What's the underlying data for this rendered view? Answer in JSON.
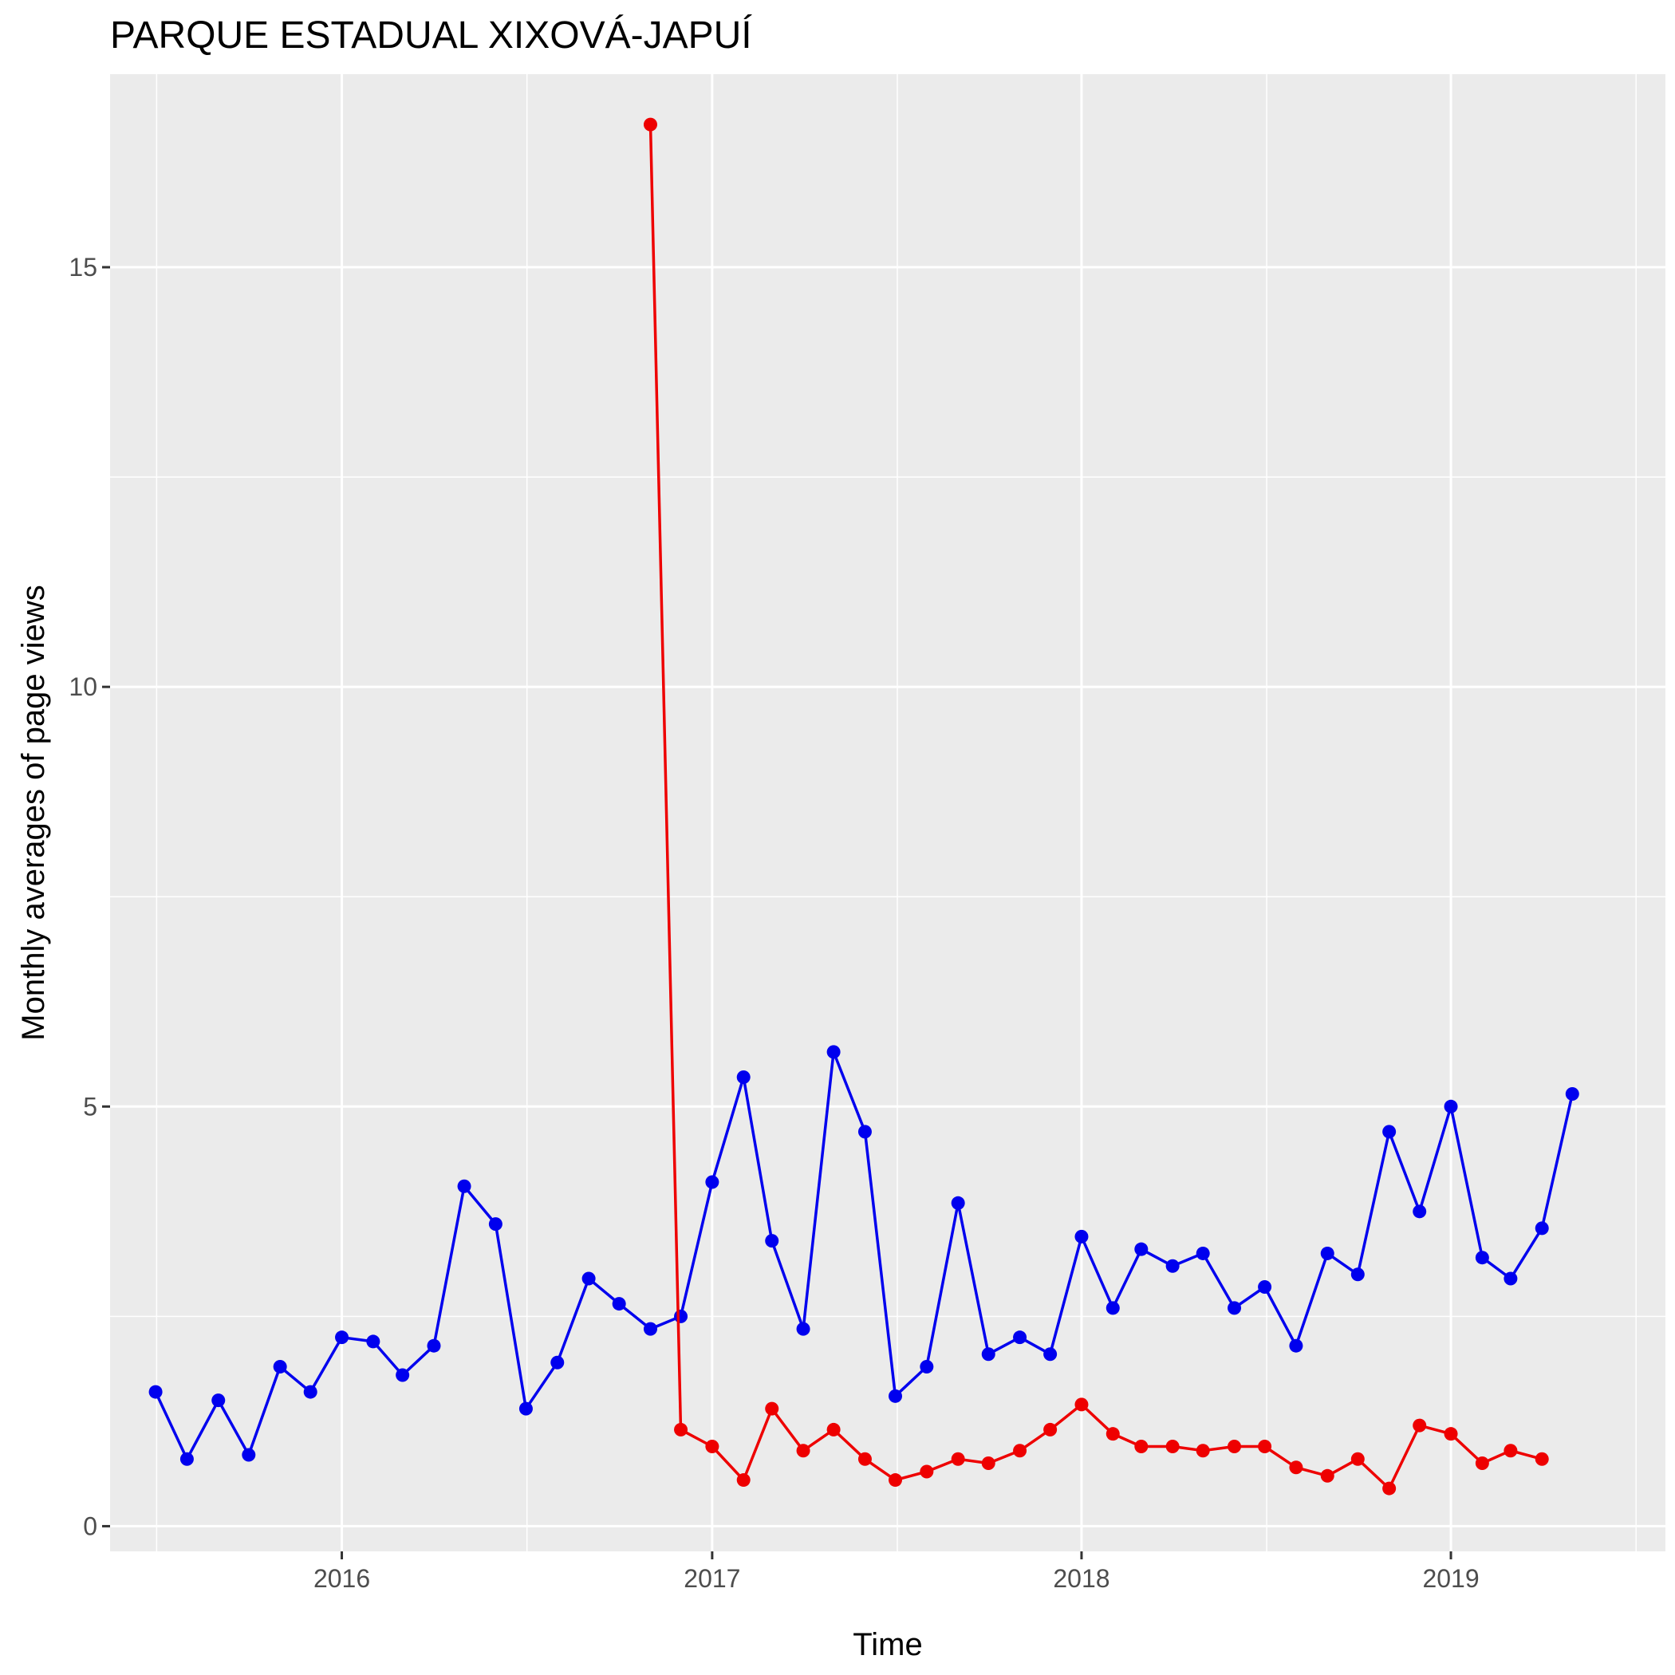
{
  "chart_data": {
    "type": "line",
    "title": "PARQUE ESTADUAL XIXOVÁ-JAPUÍ",
    "xlabel": "Time",
    "ylabel": "Monthly averages of page views",
    "x_axis": {
      "kind": "date",
      "range": [
        "2015-05-17",
        "2019-08-01"
      ],
      "ticks": [
        "2016-01-01",
        "2017-01-01",
        "2018-01-01",
        "2019-01-01"
      ],
      "tick_labels": [
        "2016",
        "2017",
        "2018",
        "2019"
      ]
    },
    "y_axis": {
      "range": [
        -0.3,
        17.3
      ],
      "ticks": [
        0,
        5,
        10,
        15
      ],
      "tick_labels": [
        "0",
        "5",
        "10",
        "15"
      ]
    },
    "grid": true,
    "legend": "none",
    "series": [
      {
        "color": "#0000ee",
        "x": [
          "2015-07-01",
          "2015-08-01",
          "2015-09-01",
          "2015-10-01",
          "2015-11-01",
          "2015-12-01",
          "2016-01-01",
          "2016-02-01",
          "2016-03-01",
          "2016-04-01",
          "2016-05-01",
          "2016-06-01",
          "2016-07-01",
          "2016-08-01",
          "2016-09-01",
          "2016-10-01",
          "2016-11-01",
          "2016-12-01",
          "2017-01-01",
          "2017-02-01",
          "2017-03-01",
          "2017-04-01",
          "2017-05-01",
          "2017-06-01",
          "2017-07-01",
          "2017-08-01",
          "2017-09-01",
          "2017-10-01",
          "2017-11-01",
          "2017-12-01",
          "2018-01-01",
          "2018-02-01",
          "2018-03-01",
          "2018-04-01",
          "2018-05-01",
          "2018-06-01",
          "2018-07-01",
          "2018-08-01",
          "2018-09-01",
          "2018-10-01",
          "2018-11-01",
          "2018-12-01",
          "2019-01-01",
          "2019-02-01",
          "2019-03-01",
          "2019-04-01",
          "2019-05-01"
        ],
        "y": [
          1.6,
          0.8,
          1.5,
          0.85,
          1.9,
          1.6,
          2.25,
          2.2,
          1.8,
          2.15,
          4.05,
          3.6,
          1.4,
          1.95,
          2.95,
          2.65,
          2.35,
          2.5,
          4.1,
          5.35,
          3.4,
          2.35,
          5.65,
          4.7,
          1.55,
          1.9,
          3.85,
          2.05,
          2.25,
          2.05,
          3.45,
          2.6,
          3.3,
          3.1,
          3.25,
          2.6,
          2.85,
          2.15,
          3.25,
          3.0,
          4.7,
          3.75,
          5.0,
          3.2,
          2.95,
          3.55,
          5.15
        ]
      },
      {
        "color": "#ee0000",
        "x": [
          "2016-11-01",
          "2016-12-01",
          "2017-01-01",
          "2017-02-01",
          "2017-03-01",
          "2017-04-01",
          "2017-05-01",
          "2017-06-01",
          "2017-07-01",
          "2017-08-01",
          "2017-09-01",
          "2017-10-01",
          "2017-11-01",
          "2017-12-01",
          "2018-01-01",
          "2018-02-01",
          "2018-03-01",
          "2018-04-01",
          "2018-05-01",
          "2018-06-01",
          "2018-07-01",
          "2018-08-01",
          "2018-09-01",
          "2018-10-01",
          "2018-11-01",
          "2018-12-01",
          "2019-01-01",
          "2019-02-01",
          "2019-03-01",
          "2019-04-01"
        ],
        "y": [
          16.7,
          1.15,
          0.95,
          0.55,
          1.4,
          0.9,
          1.15,
          0.8,
          0.55,
          0.65,
          0.8,
          0.75,
          0.9,
          1.15,
          1.45,
          1.1,
          0.95,
          0.95,
          0.9,
          0.95,
          0.95,
          0.7,
          0.6,
          0.8,
          0.45,
          1.2,
          1.1,
          0.75,
          0.9,
          0.8
        ]
      }
    ]
  }
}
